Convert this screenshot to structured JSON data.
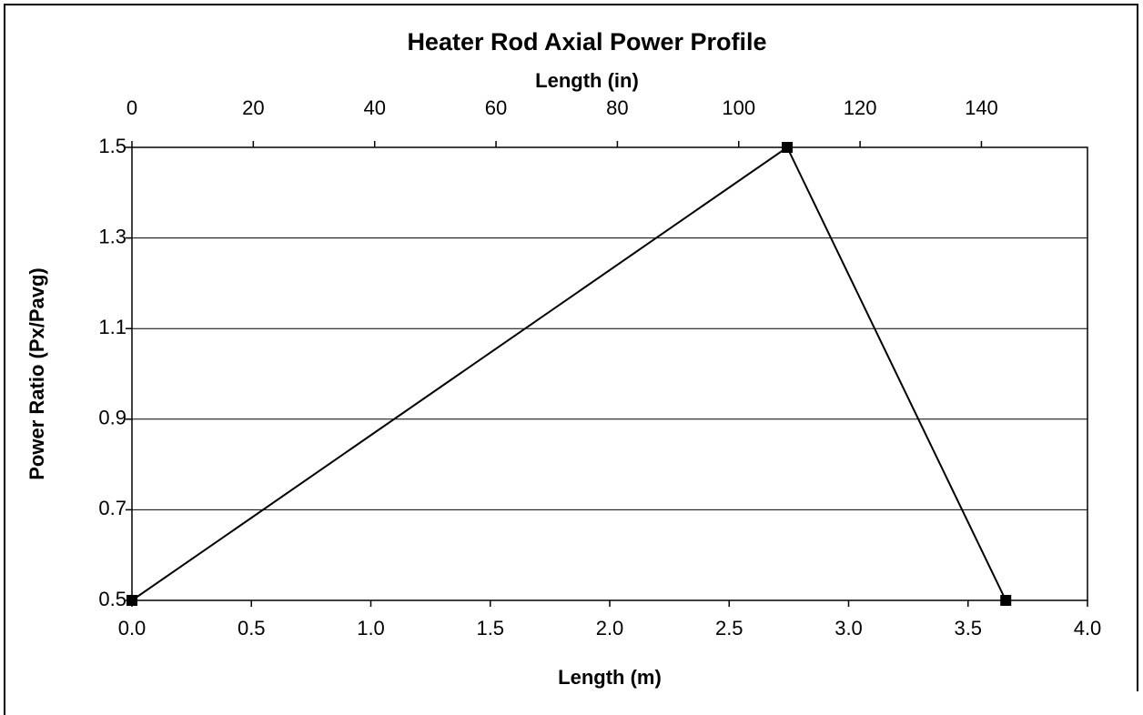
{
  "chart_data": {
    "type": "line",
    "title": "Heater Rod Axial Power Profile",
    "x2label": "Length (in)",
    "xlabel": "Length (m)",
    "ylabel": "Power Ratio (Px/Pavg)",
    "x": [
      0,
      2.743,
      3.658
    ],
    "series": [
      {
        "color": "#000000",
        "values": [
          0.5,
          1.5,
          0.5
        ]
      }
    ],
    "xlim": [
      0,
      4.0
    ],
    "xticks": [
      {
        "value": 0,
        "label": "0.0"
      },
      0.5,
      {
        "value": 1,
        "label": "1.0"
      },
      1.5,
      {
        "value": 2,
        "label": "2.0"
      },
      2.5,
      {
        "value": 3,
        "label": "3.0"
      },
      3.5,
      {
        "value": 4,
        "label": "4.0"
      }
    ],
    "x2lim": [
      0,
      157.48
    ],
    "x2ticks": [
      0,
      20,
      40,
      60,
      80,
      100,
      120,
      140
    ],
    "ylim": [
      0.5,
      1.5
    ],
    "yticks": [
      0.5,
      0.7,
      0.9,
      1.1,
      1.3,
      1.5
    ],
    "grid": true
  }
}
